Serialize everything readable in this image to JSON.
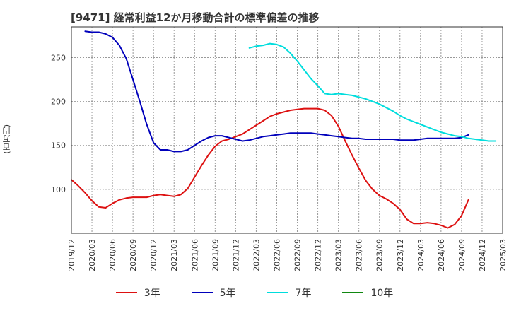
{
  "chart_data": {
    "type": "line",
    "title": "[9471]  経常利益12か月移動合計の標準偏差の推移",
    "ylabel": "(百万円)",
    "xlabel": "",
    "ylim": [
      50,
      285
    ],
    "yticks": [
      100,
      150,
      200,
      250
    ],
    "grid": true,
    "x_tick_labels": [
      "2019/12",
      "2020/03",
      "2020/06",
      "2020/09",
      "2020/12",
      "2021/03",
      "2021/06",
      "2021/09",
      "2021/12",
      "2022/03",
      "2022/06",
      "2022/09",
      "2022/12",
      "2023/03",
      "2023/06",
      "2023/09",
      "2023/12",
      "2024/03",
      "2024/06",
      "2024/09",
      "2024/12",
      "2025/03"
    ],
    "legend_position": "bottom",
    "series": [
      {
        "name": "3年",
        "color": "#dd1111",
        "start": "2019/12",
        "values": [
          111,
          104,
          96,
          87,
          80,
          79,
          84,
          88,
          90,
          91,
          91,
          91,
          93,
          94,
          93,
          92,
          94,
          101,
          114,
          127,
          139,
          149,
          155,
          157,
          160,
          163,
          168,
          173,
          178,
          183,
          186,
          188,
          190,
          191,
          192,
          192,
          192,
          190,
          184,
          172,
          155,
          139,
          124,
          110,
          100,
          93,
          89,
          84,
          77,
          66,
          61,
          61,
          62,
          61,
          59,
          56,
          60,
          70,
          88
        ]
      },
      {
        "name": "5年",
        "color": "#0000bb",
        "start": "2020/02",
        "values": [
          280,
          279,
          279,
          277,
          273,
          264,
          249,
          225,
          200,
          174,
          153,
          145,
          145,
          143,
          143,
          145,
          150,
          155,
          159,
          161,
          161,
          159,
          157,
          155,
          156,
          158,
          160,
          161,
          162,
          163,
          164,
          164,
          164,
          164,
          163,
          162,
          161,
          160,
          159,
          158,
          158,
          157,
          157,
          157,
          157,
          157,
          156,
          156,
          156,
          157,
          158,
          158,
          158,
          158,
          158,
          159,
          162
        ]
      },
      {
        "name": "7年",
        "color": "#00dddd",
        "start": "2022/02",
        "values": [
          261,
          263,
          264,
          266,
          265,
          262,
          255,
          246,
          236,
          226,
          218,
          209,
          208,
          209,
          208,
          207,
          205,
          203,
          200,
          197,
          193,
          189,
          184,
          180,
          177,
          174,
          171,
          168,
          165,
          163,
          161,
          160,
          158,
          157,
          156,
          155,
          155
        ]
      },
      {
        "name": "10年",
        "color": "#118811",
        "start": "2019/12",
        "values": []
      }
    ]
  }
}
